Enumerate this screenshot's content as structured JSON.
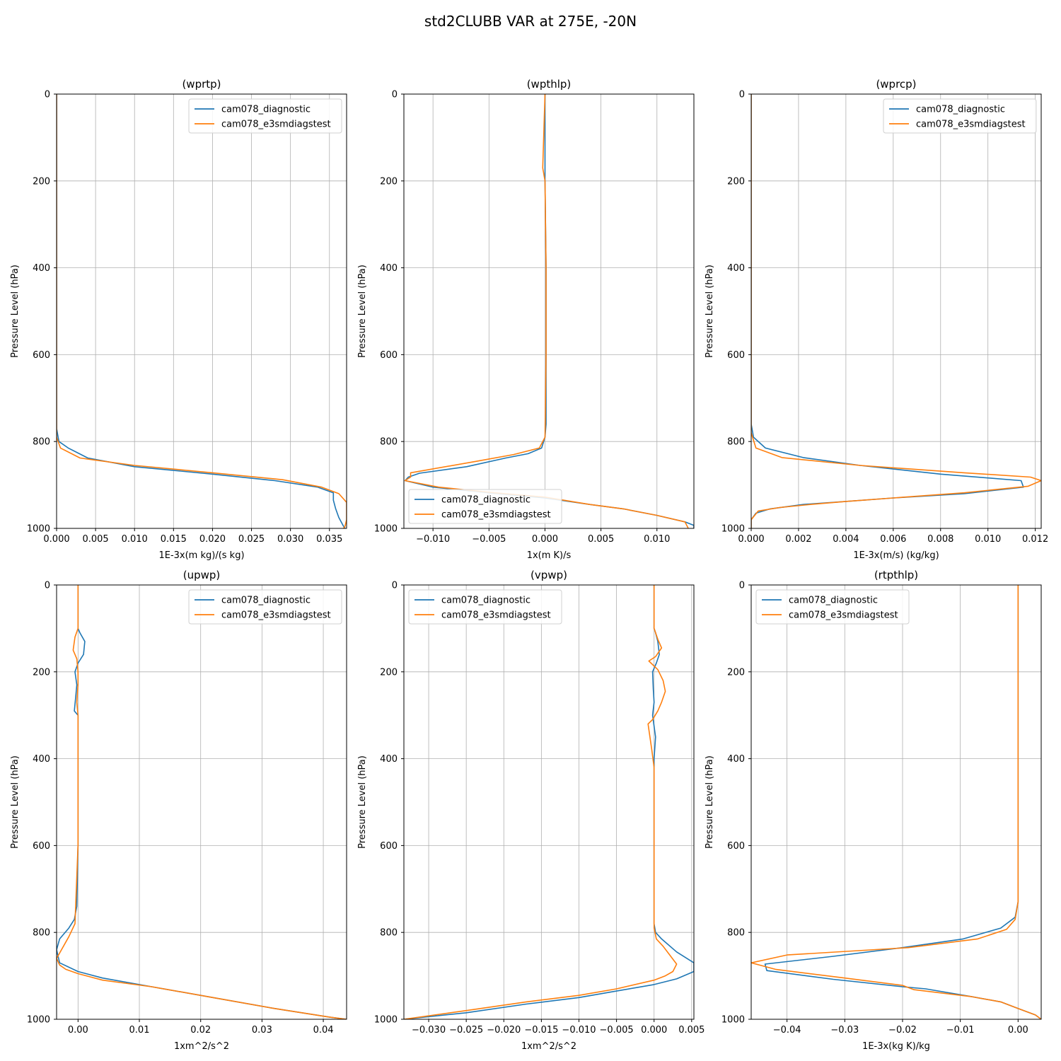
{
  "figure_title": "std2CLUBB VAR at 275E, -20N",
  "chart_data": [
    {
      "type": "line",
      "title": "(wprtp)",
      "xlabel": "1E-3x(m kg)/(s kg)",
      "ylabel": "Pressure Level (hPa)",
      "xlim": [
        0.0,
        0.0372
      ],
      "ylim": [
        1000,
        0
      ],
      "x_ticks": [
        0.0,
        0.005,
        0.01,
        0.015,
        0.02,
        0.025,
        0.03,
        0.035
      ],
      "x_tick_labels": [
        "0.000",
        "0.005",
        "0.010",
        "0.015",
        "0.020",
        "0.025",
        "0.030",
        "0.035"
      ],
      "y_ticks": [
        0,
        200,
        400,
        600,
        800,
        1000
      ],
      "y_tick_labels": [
        "0",
        "200",
        "400",
        "600",
        "800",
        "1000"
      ],
      "grid": true,
      "legend": "top-right",
      "series": [
        {
          "name": "cam078_diagnostic",
          "color": "#1f77b4",
          "x": [
            0.0,
            0.0,
            0.0,
            0.0,
            0.0003,
            0.0015,
            0.004,
            0.01,
            0.02,
            0.028,
            0.0335,
            0.0355,
            0.0355,
            0.0358,
            0.0362,
            0.0368,
            0.037
          ],
          "y": [
            0,
            400,
            700,
            770,
            800,
            815,
            838,
            858,
            875,
            890,
            905,
            918,
            935,
            955,
            975,
            995,
            1000
          ]
        },
        {
          "name": "cam078_e3smdiagstest",
          "color": "#ff7f0e",
          "x": [
            0.0,
            0.0,
            0.0,
            0.0,
            0.0005,
            0.003,
            0.01,
            0.02,
            0.029,
            0.034,
            0.0362,
            0.0372,
            0.0372,
            0.0372,
            0.037,
            0.0368
          ],
          "y": [
            0,
            400,
            700,
            790,
            815,
            838,
            855,
            872,
            888,
            905,
            920,
            940,
            960,
            980,
            995,
            1000
          ]
        }
      ]
    },
    {
      "type": "line",
      "title": "(wpthlp)",
      "xlabel": "1x(m K)/s",
      "ylabel": "Pressure Level (hPa)",
      "xlim": [
        -0.0126,
        0.0133
      ],
      "ylim": [
        1000,
        0
      ],
      "x_ticks": [
        -0.01,
        -0.005,
        0.0,
        0.005,
        0.01
      ],
      "x_tick_labels": [
        "−0.010",
        "−0.005",
        "0.000",
        "0.005",
        "0.010"
      ],
      "y_ticks": [
        0,
        200,
        400,
        600,
        800,
        1000
      ],
      "y_tick_labels": [
        "0",
        "200",
        "400",
        "600",
        "800",
        "1000"
      ],
      "grid": true,
      "legend": "lower-left",
      "series": [
        {
          "name": "cam078_diagnostic",
          "color": "#1f77b4",
          "x": [
            0.0,
            0.0,
            0.0001,
            0.0001,
            0.0001,
            0.0,
            -0.0003,
            -0.0015,
            -0.0035,
            -0.007,
            -0.0112,
            -0.0122,
            -0.0125,
            -0.01,
            -0.005,
            0.0,
            0.004,
            0.007,
            0.01,
            0.0125,
            0.0133,
            0.0133
          ],
          "y": [
            0,
            200,
            400,
            600,
            760,
            790,
            815,
            828,
            838,
            858,
            873,
            882,
            890,
            905,
            918,
            930,
            945,
            955,
            970,
            985,
            993,
            1000
          ]
        },
        {
          "name": "cam078_e3smdiagstest",
          "color": "#ff7f0e",
          "x": [
            0.0,
            -0.0002,
            0.0,
            0.0001,
            0.0001,
            0.0,
            -0.0005,
            -0.0028,
            -0.006,
            -0.012,
            -0.012,
            -0.0125,
            -0.0095,
            -0.0045,
            0.0,
            0.004,
            0.007,
            0.01,
            0.0125,
            0.0128
          ],
          "y": [
            0,
            170,
            200,
            400,
            600,
            790,
            815,
            830,
            845,
            872,
            882,
            890,
            905,
            918,
            928,
            945,
            955,
            970,
            985,
            1000
          ]
        }
      ]
    },
    {
      "type": "line",
      "title": "(wprcp)",
      "xlabel": "1E-3x(m/s) (kg/kg)",
      "ylabel": "Pressure Level (hPa)",
      "xlim": [
        0.0,
        0.01225
      ],
      "ylim": [
        1000,
        0
      ],
      "x_ticks": [
        0.0,
        0.002,
        0.004,
        0.006,
        0.008,
        0.01,
        0.012
      ],
      "x_tick_labels": [
        "0.000",
        "0.002",
        "0.004",
        "0.006",
        "0.008",
        "0.010",
        "0.012"
      ],
      "y_ticks": [
        0,
        200,
        400,
        600,
        800,
        1000
      ],
      "y_tick_labels": [
        "0",
        "200",
        "400",
        "600",
        "800",
        "1000"
      ],
      "grid": true,
      "legend": "top-right",
      "series": [
        {
          "name": "cam078_diagnostic",
          "color": "#1f77b4",
          "x": [
            0.0,
            0.0,
            0.0,
            0.0001,
            0.0006,
            0.0022,
            0.0046,
            0.008,
            0.0114,
            0.0115,
            0.009,
            0.006,
            0.004,
            0.0022,
            0.0008,
            0.0002,
            0.0,
            0.0
          ],
          "y": [
            0,
            400,
            760,
            790,
            815,
            837,
            855,
            875,
            890,
            905,
            920,
            930,
            938,
            945,
            955,
            965,
            980,
            1000
          ]
        },
        {
          "name": "cam078_e3smdiagstest",
          "color": "#ff7f0e",
          "x": [
            0.0,
            0.0,
            0.0,
            0.0002,
            0.0013,
            0.0046,
            0.009,
            0.0118,
            0.01225,
            0.0117,
            0.009,
            0.006,
            0.004,
            0.0025,
            0.0012,
            0.0003,
            0.0,
            0.0
          ],
          "y": [
            0,
            400,
            780,
            815,
            837,
            855,
            872,
            882,
            890,
            903,
            918,
            930,
            938,
            945,
            952,
            960,
            980,
            1000
          ]
        }
      ]
    },
    {
      "type": "line",
      "title": "(upwp)",
      "xlabel": "1xm^2/s^2",
      "ylabel": "Pressure Level (hPa)",
      "xlim": [
        -0.0035,
        0.0438
      ],
      "ylim": [
        1000,
        0
      ],
      "x_ticks": [
        0.0,
        0.01,
        0.02,
        0.03,
        0.04
      ],
      "x_tick_labels": [
        "0.00",
        "0.01",
        "0.02",
        "0.03",
        "0.04"
      ],
      "y_ticks": [
        0,
        200,
        400,
        600,
        800,
        1000
      ],
      "y_tick_labels": [
        "0",
        "200",
        "400",
        "600",
        "800",
        "1000"
      ],
      "grid": true,
      "legend": "top-right",
      "series": [
        {
          "name": "cam078_diagnostic",
          "color": "#1f77b4",
          "x": [
            0.0,
            0.0,
            0.0003,
            0.0011,
            0.0009,
            0.0,
            -0.0005,
            -0.0002,
            -0.0004,
            -0.0006,
            0.0,
            0.0,
            0.0,
            0.0,
            -0.0002,
            -0.0006,
            -0.0015,
            -0.003,
            -0.0035,
            -0.003,
            0.0,
            0.004,
            0.012,
            0.022,
            0.032,
            0.041,
            0.0438
          ],
          "y": [
            0,
            100,
            110,
            130,
            160,
            180,
            200,
            230,
            260,
            290,
            300,
            350,
            400,
            600,
            740,
            770,
            790,
            815,
            840,
            870,
            890,
            905,
            925,
            950,
            975,
            995,
            1000
          ]
        },
        {
          "name": "cam078_e3smdiagstest",
          "color": "#ff7f0e",
          "x": [
            0.0,
            0.0,
            -0.0005,
            -0.0008,
            -0.0002,
            0.0,
            0.0,
            -0.0002,
            0.0,
            0.0,
            0.0,
            0.0,
            -0.0005,
            -0.0015,
            -0.0035,
            -0.003,
            -0.002,
            0.0,
            0.004,
            0.012,
            0.022,
            0.032,
            0.041,
            0.0438
          ],
          "y": [
            0,
            100,
            120,
            150,
            170,
            200,
            230,
            270,
            300,
            350,
            400,
            600,
            780,
            810,
            860,
            875,
            885,
            895,
            910,
            925,
            950,
            975,
            995,
            1000
          ]
        }
      ]
    },
    {
      "type": "line",
      "title": "(vpwp)",
      "xlabel": "1xm^2/s^2",
      "ylabel": "Pressure Level (hPa)",
      "xlim": [
        -0.0333,
        0.0053
      ],
      "ylim": [
        1000,
        0
      ],
      "x_ticks": [
        -0.03,
        -0.025,
        -0.02,
        -0.015,
        -0.01,
        -0.005,
        0.0,
        0.005
      ],
      "x_tick_labels": [
        "−0.030",
        "−0.025",
        "−0.020",
        "−0.015",
        "−0.010",
        "−0.005",
        "0.000",
        "0.005"
      ],
      "y_ticks": [
        0,
        200,
        400,
        600,
        800,
        1000
      ],
      "y_tick_labels": [
        "0",
        "200",
        "400",
        "600",
        "800",
        "1000"
      ],
      "grid": true,
      "legend": "top-left",
      "series": [
        {
          "name": "cam078_diagnostic",
          "color": "#1f77b4",
          "x": [
            0.0,
            0.0,
            0.0002,
            0.0005,
            0.0007,
            0.0003,
            -0.0002,
            -0.0001,
            0.0,
            -0.0002,
            0.0002,
            0.0,
            0.0,
            0.0,
            0.0002,
            0.001,
            0.003,
            0.0053,
            0.0053,
            0.003,
            0.0,
            -0.005,
            -0.01,
            -0.017,
            -0.025,
            -0.0333
          ],
          "y": [
            0,
            100,
            110,
            130,
            160,
            180,
            200,
            240,
            270,
            300,
            350,
            400,
            600,
            780,
            800,
            815,
            845,
            870,
            890,
            907,
            920,
            935,
            950,
            965,
            985,
            1000
          ]
        },
        {
          "name": "cam078_e3smdiagstest",
          "color": "#ff7f0e",
          "x": [
            0.0,
            0.0,
            0.0005,
            0.001,
            0.0002,
            -0.0007,
            0.0005,
            0.0012,
            0.0015,
            0.001,
            0.0005,
            -0.0002,
            -0.0008,
            -0.0003,
            0.0,
            0.0,
            0.0,
            0.0003,
            0.0012,
            0.002,
            0.003,
            0.0025,
            0.0015,
            0.0,
            -0.005,
            -0.01,
            -0.017,
            -0.025,
            -0.0333
          ],
          "y": [
            0,
            100,
            125,
            145,
            165,
            175,
            195,
            220,
            245,
            270,
            290,
            310,
            320,
            380,
            420,
            600,
            790,
            815,
            832,
            850,
            873,
            890,
            900,
            910,
            930,
            945,
            960,
            980,
            1000
          ]
        }
      ]
    },
    {
      "type": "line",
      "title": "(rtpthlp)",
      "xlabel": "1E-3x(kg K)/kg",
      "ylabel": "Pressure Level (hPa)",
      "xlim": [
        -0.0462,
        0.004
      ],
      "ylim": [
        1000,
        0
      ],
      "x_ticks": [
        -0.04,
        -0.03,
        -0.02,
        -0.01,
        0.0
      ],
      "x_tick_labels": [
        "−0.04",
        "−0.03",
        "−0.02",
        "−0.01",
        "0.00"
      ],
      "y_ticks": [
        0,
        200,
        400,
        600,
        800,
        1000
      ],
      "y_tick_labels": [
        "0",
        "200",
        "400",
        "600",
        "800",
        "1000"
      ],
      "grid": true,
      "legend": "top-left",
      "series": [
        {
          "name": "cam078_diagnostic",
          "color": "#1f77b4",
          "x": [
            0.0,
            0.0,
            0.0,
            0.0,
            -0.0005,
            -0.003,
            -0.0095,
            -0.02,
            -0.032,
            -0.0438,
            -0.0435,
            -0.032,
            -0.02,
            -0.016,
            -0.008,
            -0.003,
            0.0,
            0.003,
            0.004
          ],
          "y": [
            0,
            400,
            600,
            730,
            765,
            790,
            815,
            835,
            855,
            873,
            888,
            908,
            925,
            930,
            948,
            960,
            975,
            990,
            1000
          ]
        },
        {
          "name": "cam078_e3smdiagstest",
          "color": "#ff7f0e",
          "x": [
            0.0,
            0.0,
            0.0,
            0.0,
            -0.0005,
            -0.002,
            -0.007,
            -0.019,
            -0.04,
            -0.0462,
            -0.042,
            -0.03,
            -0.02,
            -0.018,
            -0.008,
            -0.003,
            0.0,
            0.003,
            0.004
          ],
          "y": [
            0,
            400,
            600,
            730,
            770,
            793,
            815,
            835,
            852,
            870,
            885,
            905,
            922,
            932,
            948,
            960,
            975,
            990,
            1000
          ]
        }
      ]
    }
  ]
}
